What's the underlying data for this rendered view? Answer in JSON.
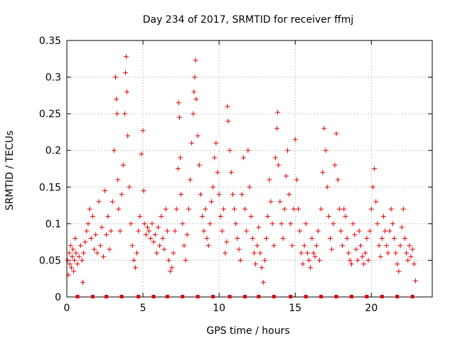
{
  "chart_data": {
    "type": "scatter",
    "title": "Day 234 of 2017, SRMTID for receiver ffmj",
    "xlabel": "GPS time / hours",
    "ylabel": "SRMTID / TECUs",
    "xlim": [
      0,
      24
    ],
    "ylim": [
      0,
      0.35
    ],
    "grid": true,
    "x_ticks": [
      0,
      5,
      10,
      15,
      20
    ],
    "x_tick_labels": [
      "0",
      "5",
      "10",
      "15",
      "20"
    ],
    "y_ticks": [
      0,
      0.05,
      0.1,
      0.15,
      0.2,
      0.25,
      0.3,
      0.35
    ],
    "y_tick_labels": [
      "0",
      "0.05",
      "0.1",
      "0.15",
      "0.2",
      "0.25",
      "0.3",
      "0.35"
    ],
    "marker": "plus",
    "color": "#e00000",
    "series": [
      {
        "name": "SRMTID",
        "points": [
          [
            0.05,
            0.05
          ],
          [
            0.1,
            0.03
          ],
          [
            0.15,
            0.06
          ],
          [
            0.2,
            0.045
          ],
          [
            0.25,
            0.07
          ],
          [
            0.3,
            0.04
          ],
          [
            0.35,
            0.055
          ],
          [
            0.4,
            0.065
          ],
          [
            0.45,
            0.035
          ],
          [
            0.5,
            0.05
          ],
          [
            0.55,
            0.08
          ],
          [
            0.6,
            0.06
          ],
          [
            0.7,
            0.045
          ],
          [
            0.8,
            0.055
          ],
          [
            0.9,
            0.07
          ],
          [
            1.0,
            0.05
          ],
          [
            1.05,
            0.02
          ],
          [
            1.1,
            0.06
          ],
          [
            1.2,
            0.075
          ],
          [
            1.3,
            0.09
          ],
          [
            1.4,
            0.1
          ],
          [
            1.5,
            0.12
          ],
          [
            1.6,
            0.08
          ],
          [
            1.7,
            0.11
          ],
          [
            1.8,
            0.065
          ],
          [
            1.9,
            0.085
          ],
          [
            2.0,
            0.06
          ],
          [
            2.1,
            0.13
          ],
          [
            2.2,
            0.07
          ],
          [
            2.3,
            0.095
          ],
          [
            2.4,
            0.055
          ],
          [
            2.5,
            0.145
          ],
          [
            2.6,
            0.085
          ],
          [
            2.7,
            0.11
          ],
          [
            2.8,
            0.065
          ],
          [
            2.9,
            0.09
          ],
          [
            3.0,
            0.13
          ],
          [
            3.1,
            0.2
          ],
          [
            3.2,
            0.3
          ],
          [
            3.25,
            0.27
          ],
          [
            3.3,
            0.25
          ],
          [
            3.35,
            0.16
          ],
          [
            3.4,
            0.12
          ],
          [
            3.5,
            0.09
          ],
          [
            3.6,
            0.14
          ],
          [
            3.7,
            0.18
          ],
          [
            3.8,
            0.25
          ],
          [
            3.85,
            0.306
          ],
          [
            3.9,
            0.328
          ],
          [
            3.95,
            0.28
          ],
          [
            4.0,
            0.22
          ],
          [
            4.1,
            0.15
          ],
          [
            4.2,
            0.1
          ],
          [
            4.3,
            0.07
          ],
          [
            4.4,
            0.05
          ],
          [
            4.5,
            0.04
          ],
          [
            4.6,
            0.06
          ],
          [
            4.7,
            0.09
          ],
          [
            4.8,
            0.11
          ],
          [
            4.9,
            0.195
          ],
          [
            5.0,
            0.227
          ],
          [
            5.05,
            0.145
          ],
          [
            5.1,
            0.1
          ],
          [
            5.2,
            0.085
          ],
          [
            5.3,
            0.095
          ],
          [
            5.4,
            0.09
          ],
          [
            5.5,
            0.08
          ],
          [
            5.6,
            0.1
          ],
          [
            5.7,
            0.075
          ],
          [
            5.8,
            0.085
          ],
          [
            5.9,
            0.06
          ],
          [
            6.0,
            0.095
          ],
          [
            6.1,
            0.07
          ],
          [
            6.2,
            0.11
          ],
          [
            6.3,
            0.08
          ],
          [
            6.4,
            0.065
          ],
          [
            6.5,
            0.12
          ],
          [
            6.6,
            0.09
          ],
          [
            6.7,
            0.05
          ],
          [
            6.8,
            0.035
          ],
          [
            6.9,
            0.04
          ],
          [
            7.0,
            0.06
          ],
          [
            7.1,
            0.09
          ],
          [
            7.2,
            0.12
          ],
          [
            7.3,
            0.175
          ],
          [
            7.35,
            0.265
          ],
          [
            7.4,
            0.245
          ],
          [
            7.45,
            0.19
          ],
          [
            7.5,
            0.14
          ],
          [
            7.6,
            0.1
          ],
          [
            7.7,
            0.07
          ],
          [
            7.8,
            0.05
          ],
          [
            7.9,
            0.085
          ],
          [
            8.0,
            0.12
          ],
          [
            8.1,
            0.16
          ],
          [
            8.2,
            0.21
          ],
          [
            8.3,
            0.25
          ],
          [
            8.35,
            0.28
          ],
          [
            8.4,
            0.3
          ],
          [
            8.45,
            0.323
          ],
          [
            8.5,
            0.27
          ],
          [
            8.6,
            0.22
          ],
          [
            8.7,
            0.18
          ],
          [
            8.8,
            0.14
          ],
          [
            8.9,
            0.11
          ],
          [
            9.0,
            0.09
          ],
          [
            9.1,
            0.12
          ],
          [
            9.2,
            0.08
          ],
          [
            9.3,
            0.07
          ],
          [
            9.4,
            0.1
          ],
          [
            9.5,
            0.13
          ],
          [
            9.6,
            0.15
          ],
          [
            9.7,
            0.19
          ],
          [
            9.8,
            0.21
          ],
          [
            9.9,
            0.17
          ],
          [
            10.0,
            0.14
          ],
          [
            10.1,
            0.11
          ],
          [
            10.2,
            0.09
          ],
          [
            10.3,
            0.12
          ],
          [
            10.4,
            0.06
          ],
          [
            10.5,
            0.075
          ],
          [
            10.55,
            0.26
          ],
          [
            10.6,
            0.24
          ],
          [
            10.7,
            0.2
          ],
          [
            10.8,
            0.17
          ],
          [
            10.9,
            0.14
          ],
          [
            11.0,
            0.12
          ],
          [
            11.1,
            0.1
          ],
          [
            11.2,
            0.08
          ],
          [
            11.3,
            0.065
          ],
          [
            11.4,
            0.05
          ],
          [
            11.5,
            0.14
          ],
          [
            11.6,
            0.19
          ],
          [
            11.7,
            0.12
          ],
          [
            11.8,
            0.09
          ],
          [
            11.9,
            0.2
          ],
          [
            12.0,
            0.15
          ],
          [
            12.1,
            0.11
          ],
          [
            12.2,
            0.08
          ],
          [
            12.3,
            0.06
          ],
          [
            12.4,
            0.045
          ],
          [
            12.5,
            0.07
          ],
          [
            12.6,
            0.095
          ],
          [
            12.7,
            0.06
          ],
          [
            12.8,
            0.04
          ],
          [
            12.9,
            0.02
          ],
          [
            13.0,
            0.05
          ],
          [
            13.1,
            0.08
          ],
          [
            13.2,
            0.11
          ],
          [
            13.3,
            0.16
          ],
          [
            13.4,
            0.13
          ],
          [
            13.5,
            0.1
          ],
          [
            13.6,
            0.07
          ],
          [
            13.7,
            0.19
          ],
          [
            13.8,
            0.23
          ],
          [
            13.85,
            0.252
          ],
          [
            13.9,
            0.18
          ],
          [
            14.0,
            0.13
          ],
          [
            14.1,
            0.1
          ],
          [
            14.2,
            0.08
          ],
          [
            14.3,
            0.12
          ],
          [
            14.4,
            0.165
          ],
          [
            14.5,
            0.2
          ],
          [
            14.6,
            0.14
          ],
          [
            14.7,
            0.1
          ],
          [
            14.8,
            0.07
          ],
          [
            14.9,
            0.12
          ],
          [
            15.0,
            0.215
          ],
          [
            15.1,
            0.16
          ],
          [
            15.2,
            0.12
          ],
          [
            15.3,
            0.09
          ],
          [
            15.4,
            0.06
          ],
          [
            15.5,
            0.045
          ],
          [
            15.6,
            0.07
          ],
          [
            15.7,
            0.1
          ],
          [
            15.8,
            0.06
          ],
          [
            15.9,
            0.05
          ],
          [
            16.0,
            0.04
          ],
          [
            16.1,
            0.08
          ],
          [
            16.2,
            0.06
          ],
          [
            16.3,
            0.055
          ],
          [
            16.4,
            0.07
          ],
          [
            16.5,
            0.09
          ],
          [
            16.6,
            0.05
          ],
          [
            16.7,
            0.12
          ],
          [
            16.8,
            0.17
          ],
          [
            16.9,
            0.23
          ],
          [
            17.0,
            0.2
          ],
          [
            17.1,
            0.15
          ],
          [
            17.2,
            0.11
          ],
          [
            17.3,
            0.08
          ],
          [
            17.4,
            0.065
          ],
          [
            17.5,
            0.1
          ],
          [
            17.6,
            0.18
          ],
          [
            17.7,
            0.223
          ],
          [
            17.8,
            0.16
          ],
          [
            17.9,
            0.12
          ],
          [
            18.0,
            0.09
          ],
          [
            18.1,
            0.07
          ],
          [
            18.2,
            0.12
          ],
          [
            18.3,
            0.11
          ],
          [
            18.4,
            0.08
          ],
          [
            18.5,
            0.06
          ],
          [
            18.6,
            0.05
          ],
          [
            18.7,
            0.045
          ],
          [
            18.8,
            0.1
          ],
          [
            18.9,
            0.085
          ],
          [
            19.0,
            0.065
          ],
          [
            19.1,
            0.05
          ],
          [
            19.2,
            0.09
          ],
          [
            19.3,
            0.07
          ],
          [
            19.4,
            0.055
          ],
          [
            19.5,
            0.045
          ],
          [
            19.6,
            0.06
          ],
          [
            19.7,
            0.08
          ],
          [
            19.8,
            0.05
          ],
          [
            19.9,
            0.09
          ],
          [
            20.0,
            0.12
          ],
          [
            20.1,
            0.15
          ],
          [
            20.2,
            0.175
          ],
          [
            20.3,
            0.13
          ],
          [
            20.4,
            0.1
          ],
          [
            20.5,
            0.07
          ],
          [
            20.6,
            0.055
          ],
          [
            20.7,
            0.08
          ],
          [
            20.8,
            0.11
          ],
          [
            20.9,
            0.09
          ],
          [
            21.0,
            0.07
          ],
          [
            21.1,
            0.06
          ],
          [
            21.2,
            0.09
          ],
          [
            21.3,
            0.12
          ],
          [
            21.4,
            0.1
          ],
          [
            21.5,
            0.08
          ],
          [
            21.6,
            0.06
          ],
          [
            21.7,
            0.045
          ],
          [
            21.8,
            0.035
          ],
          [
            21.9,
            0.07
          ],
          [
            22.0,
            0.095
          ],
          [
            22.1,
            0.12
          ],
          [
            22.2,
            0.08
          ],
          [
            22.3,
            0.06
          ],
          [
            22.4,
            0.05
          ],
          [
            22.5,
            0.07
          ],
          [
            22.6,
            0.055
          ],
          [
            22.7,
            0.065
          ],
          [
            22.8,
            0.045
          ],
          [
            22.9,
            0.022
          ]
        ]
      }
    ],
    "bottom_markers_hours": [
      0.7,
      1.7,
      2.6,
      3.6,
      4.7,
      5.7,
      6.6,
      7.6,
      8.6,
      9.6,
      10.7,
      11.7,
      12.6,
      13.6,
      14.7,
      15.7,
      16.7,
      17.7,
      18.7,
      19.7,
      20.7,
      21.7,
      22.7
    ]
  }
}
